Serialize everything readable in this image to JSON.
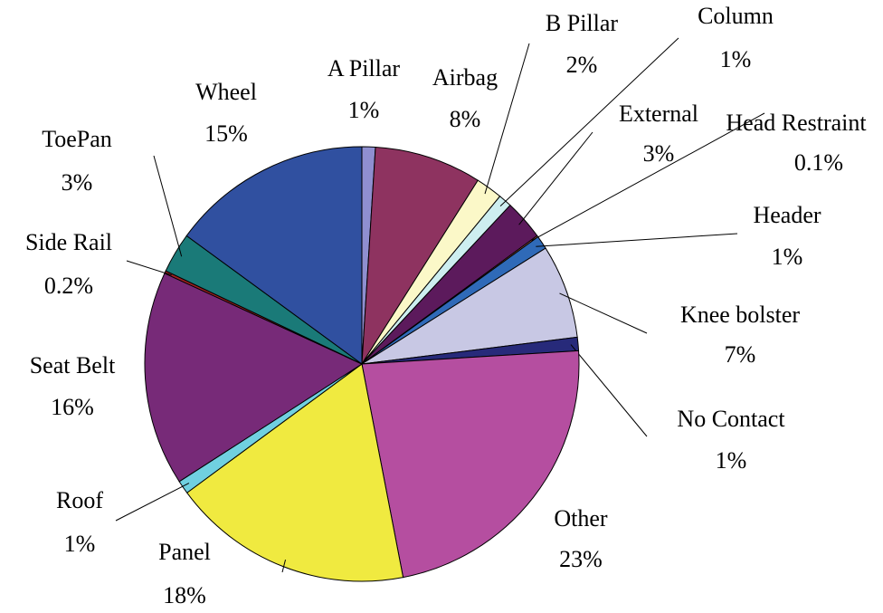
{
  "chart_data": {
    "type": "pie",
    "categories": [
      "A Pillar",
      "Airbag",
      "B Pillar",
      "Column",
      "External",
      "Head Restraint",
      "Header",
      "Knee bolster",
      "No Contact",
      "Other",
      "Panel",
      "Roof",
      "Seat Belt",
      "Side Rail",
      "ToePan",
      "Wheel"
    ],
    "values": [
      1,
      8,
      2,
      1,
      3,
      0.1,
      1,
      7,
      1,
      23,
      18,
      1,
      16,
      0.2,
      3,
      15
    ],
    "value_labels": [
      "1%",
      "8%",
      "2%",
      "1%",
      "3%",
      "0.1%",
      "1%",
      "7%",
      "1%",
      "23%",
      "18%",
      "1%",
      "16%",
      "0.2%",
      "3%",
      "15%"
    ],
    "colors": [
      "#8f8fd0",
      "#8e3360",
      "#fbf8c8",
      "#cdeef0",
      "#5c1a5c",
      "#f08060",
      "#2f6ab8",
      "#c8c8e4",
      "#272a7a",
      "#b54ea0",
      "#f0ea40",
      "#70d0e0",
      "#772a78",
      "#a02020",
      "#1a7a78",
      "#3050a0"
    ]
  }
}
